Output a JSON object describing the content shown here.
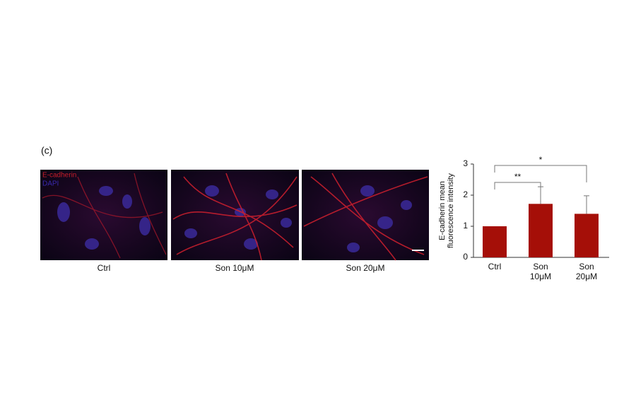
{
  "panel_label": "(c)",
  "image_legend": [
    "E-cadherin",
    "DAPI"
  ],
  "images": [
    {
      "label": "Ctrl"
    },
    {
      "label": "Son 10μM"
    },
    {
      "label": "Son 20μM"
    }
  ],
  "chart_data": {
    "type": "bar",
    "ylabel": [
      "E-cadherin mean",
      "fluorescence intensity"
    ],
    "categories": [
      "Ctrl",
      "Son 10μM",
      "Son 20μM"
    ],
    "values": [
      1.0,
      1.72,
      1.4
    ],
    "errors": [
      0,
      0.55,
      0.58
    ],
    "color": "#a50f08",
    "ylim": [
      0,
      3
    ],
    "yticks": [
      0,
      1,
      2,
      3
    ],
    "annotations": [
      "**",
      "*"
    ]
  }
}
